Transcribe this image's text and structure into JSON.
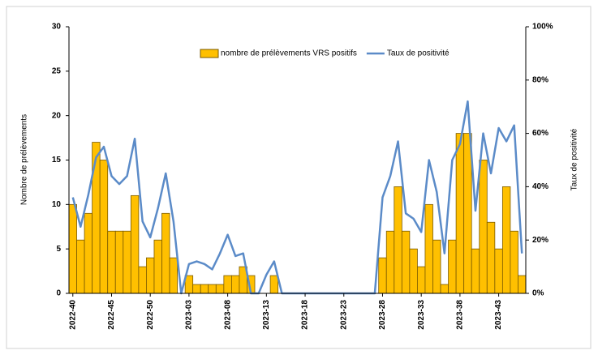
{
  "chart_data": {
    "type": "bar-line",
    "y_label": "Nombre de prélèvements",
    "y2_label": "Taux de positivité",
    "categories": [
      "2022-40",
      null,
      null,
      null,
      null,
      "2022-45",
      null,
      null,
      null,
      null,
      "2022-50",
      null,
      null,
      null,
      null,
      "2023-03",
      null,
      null,
      null,
      null,
      "2023-08",
      null,
      null,
      null,
      null,
      "2023-13",
      null,
      null,
      null,
      null,
      "2023-18",
      null,
      null,
      null,
      null,
      "2023-23",
      null,
      null,
      null,
      null,
      "2023-28",
      null,
      null,
      null,
      null,
      "2023-33",
      null,
      null,
      null,
      null,
      "2023-38",
      null,
      null,
      null,
      null,
      "2023-43",
      null,
      null,
      null
    ],
    "series": [
      {
        "name": "nombre de prélèvements VRS positifs",
        "kind": "bar",
        "color": "#FFC000",
        "values": [
          10,
          6,
          9,
          17,
          15,
          7,
          7,
          7,
          11,
          3,
          4,
          6,
          9,
          4,
          0,
          2,
          1,
          1,
          1,
          1,
          2,
          2,
          3,
          2,
          0,
          0,
          2,
          0,
          0,
          0,
          0,
          0,
          0,
          0,
          0,
          0,
          0,
          0,
          0,
          0,
          4,
          7,
          12,
          7,
          5,
          3,
          10,
          6,
          1,
          6,
          18,
          18,
          5,
          15,
          8,
          5,
          12,
          7,
          2
        ]
      },
      {
        "name": "Taux de positivité",
        "kind": "line",
        "axis": "y2",
        "color": "#5B8BC8",
        "values": [
          36,
          25,
          37,
          51,
          55,
          44,
          41,
          44,
          58,
          27,
          21,
          32,
          45,
          27,
          0,
          11,
          12,
          11,
          9,
          15,
          22,
          14,
          15,
          0,
          0,
          7,
          12,
          0,
          0,
          0,
          0,
          0,
          0,
          0,
          0,
          0,
          0,
          0,
          0,
          0,
          36,
          44,
          57,
          30,
          28,
          23,
          50,
          38,
          15,
          50,
          56,
          72,
          31,
          60,
          45,
          62,
          57,
          63,
          15
        ]
      }
    ],
    "ylim": [
      0,
      30
    ],
    "yticks": [
      0,
      5,
      10,
      15,
      20,
      25,
      30
    ],
    "y2lim": [
      0,
      100
    ],
    "y2ticks": [
      {
        "value": 0,
        "label": "0%"
      },
      {
        "value": 20,
        "label": "20%"
      },
      {
        "value": 40,
        "label": "40%"
      },
      {
        "value": 60,
        "label": "60%"
      },
      {
        "value": 80,
        "label": "80%"
      },
      {
        "value": 100,
        "label": "100%"
      }
    ]
  }
}
